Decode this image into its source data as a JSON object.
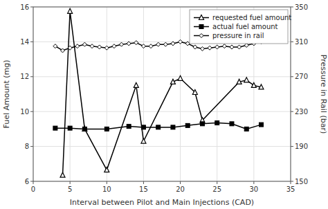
{
  "chart_data": {
    "type": "line",
    "x_label": "Interval between Pilot and Main Injections (CAD)",
    "y_label": "Fuel Amount (mg)",
    "y2_label": "Pressure in Rail (bar)",
    "xlim": [
      0,
      35
    ],
    "ylim": [
      6,
      16
    ],
    "y2lim": [
      150,
      350
    ],
    "xticks": [
      0,
      5,
      10,
      15,
      20,
      25,
      30,
      35
    ],
    "yticks": [
      6,
      8,
      10,
      12,
      14,
      16
    ],
    "y2ticks": [
      150,
      190,
      230,
      270,
      310,
      350
    ],
    "grid": true,
    "legend": "upper right",
    "series": [
      {
        "name": "requested fuel amount",
        "color": "#000000",
        "marker": "open-triangle",
        "x": [
          4,
          5,
          7,
          10,
          14,
          15,
          19,
          20,
          22,
          23,
          28,
          29,
          30,
          31
        ],
        "values": [
          6.35,
          15.75,
          9.0,
          6.65,
          11.5,
          8.3,
          11.7,
          11.9,
          11.1,
          9.5,
          11.7,
          11.8,
          11.5,
          11.4
        ]
      },
      {
        "name": "actual fuel amount",
        "color": "#000000",
        "marker": "square",
        "x": [
          3,
          5,
          7,
          10,
          13,
          15,
          17,
          19,
          21,
          23,
          25,
          27,
          29,
          31
        ],
        "values": [
          9.05,
          9.05,
          9.0,
          9.0,
          9.15,
          9.1,
          9.1,
          9.1,
          9.2,
          9.3,
          9.35,
          9.3,
          9.0,
          9.25
        ]
      },
      {
        "name": "pressure in rail",
        "color": "#000000",
        "marker": "open-diamond",
        "axis": "y2",
        "x": [
          3,
          4,
          5,
          6,
          7,
          8,
          9,
          10,
          11,
          12,
          13,
          14,
          15,
          16,
          17,
          18,
          19,
          20,
          21,
          22,
          23,
          24,
          25,
          26,
          27,
          28,
          29,
          30,
          31
        ],
        "values": [
          305,
          300,
          303,
          305,
          307,
          305,
          304,
          303,
          305,
          307,
          308,
          309,
          305,
          305,
          307,
          307,
          308,
          310,
          308,
          304,
          302,
          303,
          304,
          305,
          304,
          304,
          306,
          308,
          310
        ]
      }
    ]
  }
}
